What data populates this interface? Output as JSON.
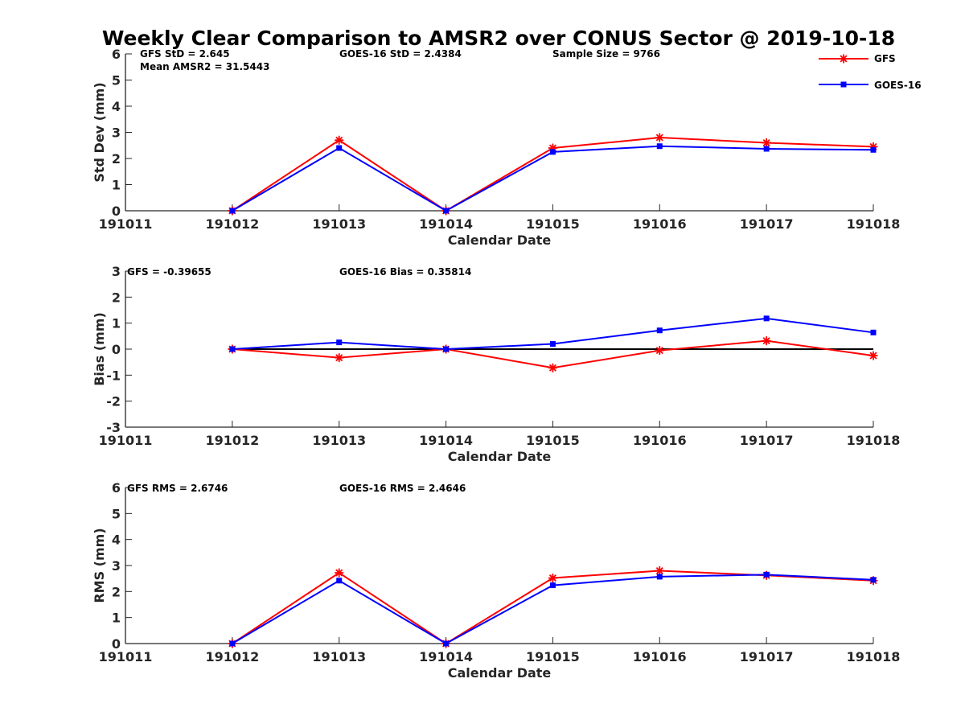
{
  "title": "Weekly Clear Comparison to AMSR2 over CONUS Sector @ 2019-10-18",
  "colors": {
    "GFS": "#ff0000",
    "GOES-16": "#0000ff",
    "zero_line": "#000000"
  },
  "legend": {
    "placement": "top-right",
    "entries": [
      {
        "label": "GFS",
        "marker": "asterisk"
      },
      {
        "label": "GOES-16",
        "marker": "square"
      }
    ]
  },
  "chart_data": [
    {
      "type": "line",
      "title": "",
      "xlabel": "Calendar Date",
      "ylabel": "Std Dev (mm)",
      "categories": [
        "191011",
        "191012",
        "191013",
        "191014",
        "191015",
        "191016",
        "191017",
        "191018"
      ],
      "ylim": [
        0,
        6
      ],
      "yticks": [
        "0",
        "1",
        "2",
        "3",
        "4",
        "5",
        "6"
      ],
      "grid": false,
      "series": [
        {
          "name": "GFS",
          "values": [
            null,
            0.0,
            2.7,
            0.0,
            2.4,
            2.8,
            2.6,
            2.45
          ]
        },
        {
          "name": "GOES-16",
          "values": [
            null,
            0.0,
            2.4,
            0.0,
            2.25,
            2.47,
            2.37,
            2.33
          ]
        }
      ],
      "annotations": [
        "GFS StD = 2.645",
        "Mean AMSR2 = 31.5443",
        "GOES-16 StD = 2.4384",
        "Sample Size = 9766"
      ]
    },
    {
      "type": "line",
      "title": "",
      "xlabel": "Calendar Date",
      "ylabel": "Bias (mm)",
      "categories": [
        "191011",
        "191012",
        "191013",
        "191014",
        "191015",
        "191016",
        "191017",
        "191018"
      ],
      "ylim": [
        -3,
        3
      ],
      "yticks": [
        "-3",
        "-2",
        "-1",
        "0",
        "1",
        "2",
        "3"
      ],
      "grid": false,
      "zero_line": true,
      "series": [
        {
          "name": "GFS",
          "values": [
            null,
            0.0,
            -0.33,
            0.0,
            -0.72,
            -0.05,
            0.32,
            -0.25
          ]
        },
        {
          "name": "GOES-16",
          "values": [
            null,
            0.0,
            0.26,
            0.0,
            0.2,
            0.72,
            1.18,
            0.64
          ]
        }
      ],
      "annotations": [
        "GFS = -0.39655",
        "GOES-16 Bias  = 0.35814"
      ]
    },
    {
      "type": "line",
      "title": "",
      "xlabel": "Calendar Date",
      "ylabel": "RMS (mm)",
      "categories": [
        "191011",
        "191012",
        "191013",
        "191014",
        "191015",
        "191016",
        "191017",
        "191018"
      ],
      "ylim": [
        0,
        6
      ],
      "yticks": [
        "0",
        "1",
        "2",
        "3",
        "4",
        "5",
        "6"
      ],
      "grid": false,
      "series": [
        {
          "name": "GFS",
          "values": [
            null,
            0.0,
            2.72,
            0.0,
            2.52,
            2.8,
            2.62,
            2.42
          ]
        },
        {
          "name": "GOES-16",
          "values": [
            null,
            0.0,
            2.42,
            0.0,
            2.24,
            2.57,
            2.65,
            2.45
          ]
        }
      ],
      "annotations": [
        "GFS RMS = 2.6746",
        "GOES-16 RMS = 2.4646"
      ]
    }
  ]
}
